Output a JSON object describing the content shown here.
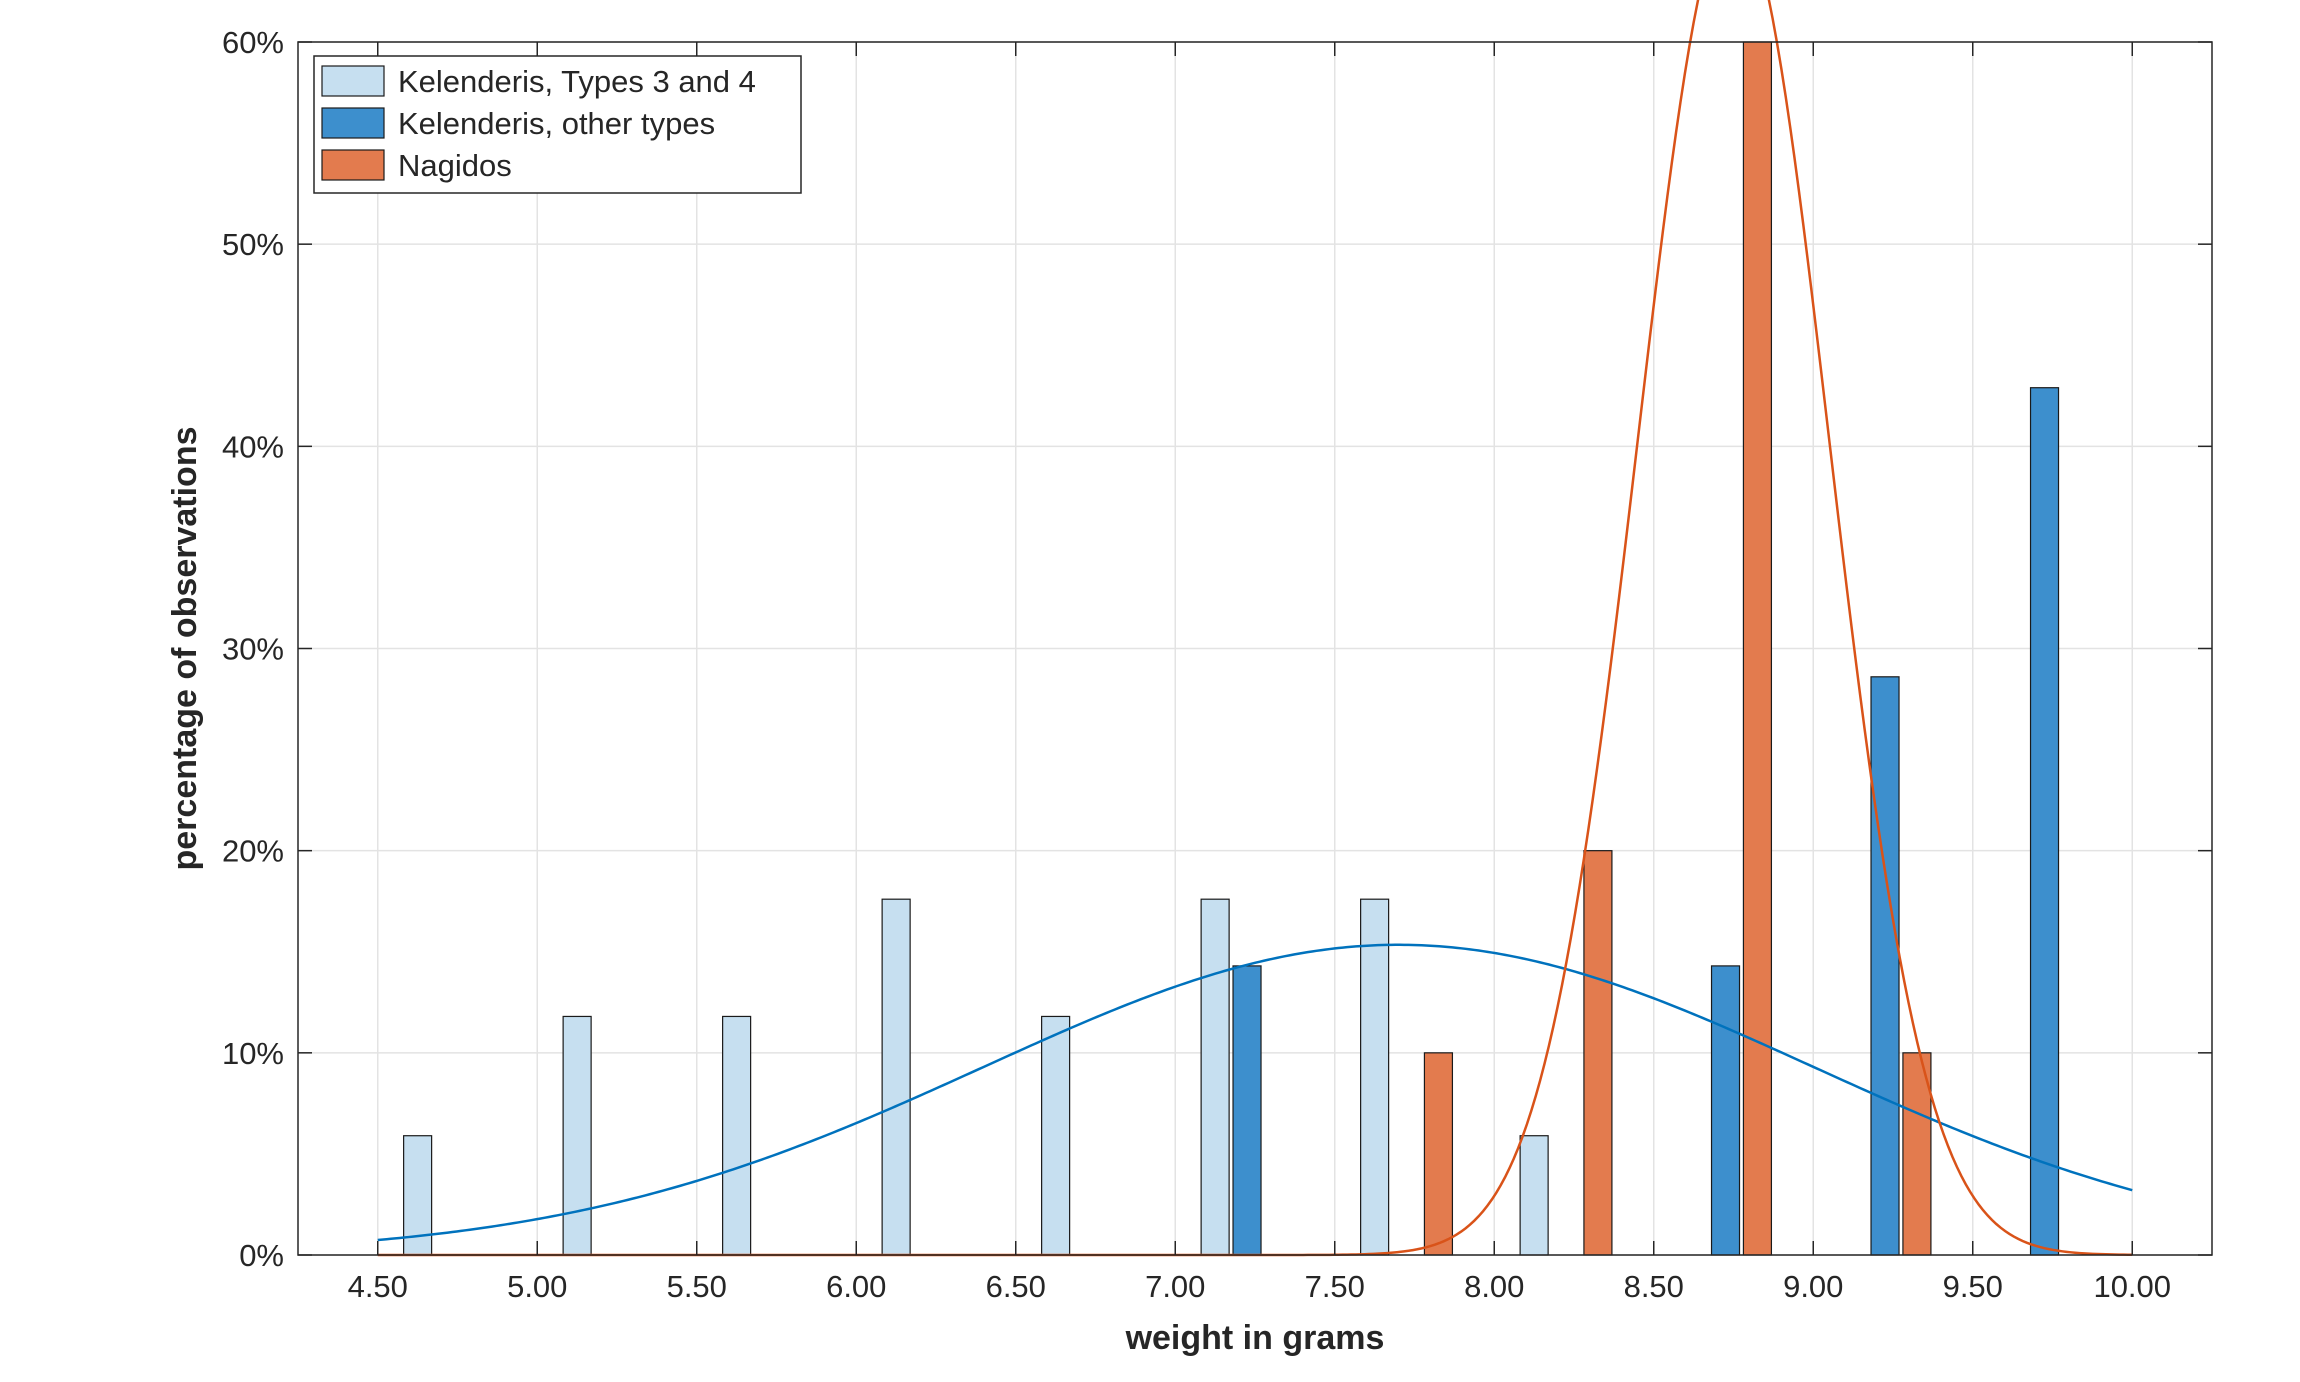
{
  "chart_data": {
    "type": "bar",
    "title": "",
    "xlabel": "weight in grams",
    "ylabel": "percentage of observations",
    "xlim": [
      4.25,
      10.25
    ],
    "ylim": [
      0,
      60
    ],
    "xticks": [
      4.5,
      5.0,
      5.5,
      6.0,
      6.5,
      7.0,
      7.5,
      8.0,
      8.5,
      9.0,
      9.5,
      10.0
    ],
    "xtick_labels": [
      "4.50",
      "5.00",
      "5.50",
      "6.00",
      "6.50",
      "7.00",
      "7.50",
      "8.00",
      "8.50",
      "9.00",
      "9.50",
      "10.00"
    ],
    "yticks": [
      0,
      10,
      20,
      30,
      40,
      50,
      60
    ],
    "ytick_labels": [
      "0%",
      "10%",
      "20%",
      "30%",
      "40%",
      "50%",
      "60%"
    ],
    "grid": true,
    "legend_position": "top-left",
    "series": [
      {
        "name": "Kelenderis, Types 3 and 4",
        "color": "#c6dff0",
        "bins": [
          4.625,
          5.125,
          5.625,
          6.125,
          6.625,
          7.125,
          7.625,
          8.125
        ],
        "values": [
          5.9,
          11.8,
          11.8,
          17.6,
          11.8,
          17.6,
          17.6,
          5.9
        ],
        "fit_curve": {
          "color": "#0072bd",
          "mean": 7.7,
          "sd": 1.3
        }
      },
      {
        "name": "Kelenderis, other types",
        "color": "#3d8fcd",
        "bins": [
          7.225,
          8.725,
          9.225,
          9.725
        ],
        "values": [
          14.3,
          14.3,
          28.6,
          42.9
        ]
      },
      {
        "name": "Nagidos",
        "color": "#e37b4e",
        "bins": [
          7.825,
          8.325,
          8.825,
          9.325
        ],
        "values": [
          10.0,
          20.0,
          60.0,
          10.0
        ],
        "fit_curve": {
          "color": "#d95319",
          "mean": 8.75,
          "sd": 0.3
        }
      }
    ]
  }
}
